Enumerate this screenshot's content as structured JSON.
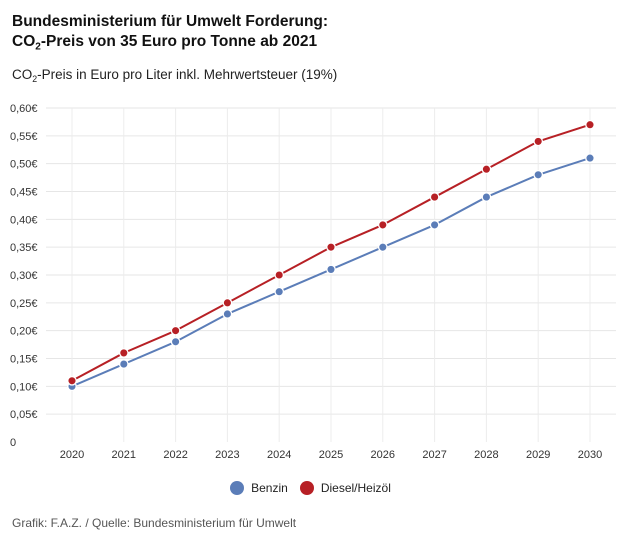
{
  "header": {
    "title_line1": "Bundesministerium für Umwelt Forderung:",
    "title_line2_pre": "CO",
    "title_line2_sub": "2",
    "title_line2_post": "-Preis von 35 Euro pro Tonne ab 2021",
    "subtitle_pre": "CO",
    "subtitle_sub": "2",
    "subtitle_post": "-Preis in Euro pro Liter inkl. Mehrwertsteuer (19%)"
  },
  "chart_data": {
    "type": "line",
    "x": [
      2020,
      2021,
      2022,
      2023,
      2024,
      2025,
      2026,
      2027,
      2028,
      2029,
      2030
    ],
    "x_tick_labels": [
      "2020",
      "2021",
      "2022",
      "2023",
      "2024",
      "2025",
      "2026",
      "2027",
      "2028",
      "2029",
      "2030"
    ],
    "y_ticks": [
      0,
      0.05,
      0.1,
      0.15,
      0.2,
      0.25,
      0.3,
      0.35,
      0.4,
      0.45,
      0.5,
      0.55,
      0.6
    ],
    "y_tick_labels": [
      "0",
      "0,05€",
      "0,10€",
      "0,15€",
      "0,20€",
      "0,25€",
      "0,30€",
      "0,35€",
      "0,40€",
      "0,45€",
      "0,50€",
      "0,55€",
      "0,60€"
    ],
    "ylim": [
      0,
      0.6
    ],
    "grid": true,
    "legend_position": "bottom-center",
    "series": [
      {
        "name": "Benzin",
        "color": "#5b7db8",
        "values": [
          0.1,
          0.14,
          0.18,
          0.23,
          0.27,
          0.31,
          0.35,
          0.39,
          0.44,
          0.48,
          0.51
        ]
      },
      {
        "name": "Diesel/Heizöl",
        "color": "#b72025",
        "values": [
          0.11,
          0.16,
          0.2,
          0.25,
          0.3,
          0.35,
          0.39,
          0.44,
          0.49,
          0.54,
          0.57
        ]
      }
    ]
  },
  "legend": {
    "item1": "Benzin",
    "item2": "Diesel/Heizöl"
  },
  "footer": {
    "source": "Grafik: F.A.Z. / Quelle: Bundesministerium für Umwelt"
  }
}
